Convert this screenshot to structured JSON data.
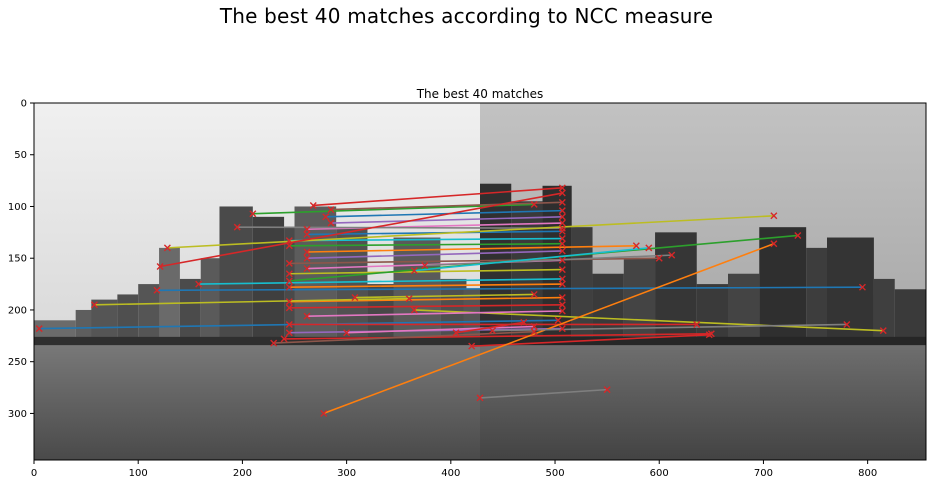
{
  "figure_title": "The best 40 matches according to NCC measure",
  "chart_data": {
    "type": "scatter",
    "title": "The best 40 matches",
    "xlabel": "",
    "ylabel": "",
    "xlim": [
      0,
      856
    ],
    "ylim": [
      345,
      0
    ],
    "xticks": [
      0,
      100,
      200,
      300,
      400,
      500,
      600,
      700,
      800
    ],
    "yticks": [
      0,
      50,
      100,
      150,
      200,
      250,
      300
    ],
    "grid": false,
    "background": "side-by-side grayscale photos of a harbor city skyline (left image width 428 px, right image offset at x=428)",
    "marker": "x",
    "marker_color": "#d62728",
    "matches": [
      {
        "x1": 268,
        "y1": 99,
        "x2": 507,
        "y2": 82,
        "color": "#d62728"
      },
      {
        "x1": 210,
        "y1": 107,
        "x2": 480,
        "y2": 98,
        "color": "#2ca02c"
      },
      {
        "x1": 285,
        "y1": 103,
        "x2": 507,
        "y2": 96,
        "color": "#8c564b"
      },
      {
        "x1": 280,
        "y1": 110,
        "x2": 507,
        "y2": 104,
        "color": "#1f77b4"
      },
      {
        "x1": 285,
        "y1": 116,
        "x2": 507,
        "y2": 110,
        "color": "#9467bd"
      },
      {
        "x1": 262,
        "y1": 122,
        "x2": 507,
        "y2": 116,
        "color": "#e377c2"
      },
      {
        "x1": 195,
        "y1": 120,
        "x2": 507,
        "y2": 121,
        "color": "#7f7f7f"
      },
      {
        "x1": 262,
        "y1": 127,
        "x2": 507,
        "y2": 124,
        "color": "#1f77b4"
      },
      {
        "x1": 245,
        "y1": 133,
        "x2": 507,
        "y2": 131,
        "color": "#17becf"
      },
      {
        "x1": 128,
        "y1": 140,
        "x2": 710,
        "y2": 109,
        "color": "#bcbd22"
      },
      {
        "x1": 245,
        "y1": 138,
        "x2": 507,
        "y2": 136,
        "color": "#2ca02c"
      },
      {
        "x1": 262,
        "y1": 144,
        "x2": 578,
        "y2": 138,
        "color": "#ff7f0e"
      },
      {
        "x1": 121,
        "y1": 158,
        "x2": 507,
        "y2": 87,
        "color": "#d62728"
      },
      {
        "x1": 262,
        "y1": 150,
        "x2": 507,
        "y2": 143,
        "color": "#9467bd"
      },
      {
        "x1": 245,
        "y1": 155,
        "x2": 600,
        "y2": 150,
        "color": "#8c564b"
      },
      {
        "x1": 262,
        "y1": 160,
        "x2": 507,
        "y2": 152,
        "color": "#e377c2"
      },
      {
        "x1": 375,
        "y1": 157,
        "x2": 612,
        "y2": 147,
        "color": "#7f7f7f"
      },
      {
        "x1": 245,
        "y1": 165,
        "x2": 507,
        "y2": 161,
        "color": "#bcbd22"
      },
      {
        "x1": 245,
        "y1": 172,
        "x2": 733,
        "y2": 128,
        "color": "#2ca02c"
      },
      {
        "x1": 158,
        "y1": 175,
        "x2": 507,
        "y2": 170,
        "color": "#17becf"
      },
      {
        "x1": 118,
        "y1": 181,
        "x2": 795,
        "y2": 178,
        "color": "#1f77b4"
      },
      {
        "x1": 245,
        "y1": 178,
        "x2": 507,
        "y2": 175,
        "color": "#ff7f0e"
      },
      {
        "x1": 308,
        "y1": 188,
        "x2": 480,
        "y2": 185,
        "color": "#bcbd22"
      },
      {
        "x1": 245,
        "y1": 192,
        "x2": 507,
        "y2": 188,
        "color": "#ff7f0e"
      },
      {
        "x1": 58,
        "y1": 195,
        "x2": 360,
        "y2": 189,
        "color": "#bcbd22"
      },
      {
        "x1": 245,
        "y1": 198,
        "x2": 507,
        "y2": 195,
        "color": "#d62728"
      },
      {
        "x1": 365,
        "y1": 200,
        "x2": 815,
        "y2": 220,
        "color": "#bcbd22"
      },
      {
        "x1": 262,
        "y1": 206,
        "x2": 507,
        "y2": 201,
        "color": "#e377c2"
      },
      {
        "x1": 5,
        "y1": 218,
        "x2": 503,
        "y2": 210,
        "color": "#1f77b4"
      },
      {
        "x1": 245,
        "y1": 214,
        "x2": 636,
        "y2": 214,
        "color": "#d62728"
      },
      {
        "x1": 245,
        "y1": 222,
        "x2": 507,
        "y2": 218,
        "color": "#9467bd"
      },
      {
        "x1": 240,
        "y1": 228,
        "x2": 650,
        "y2": 223,
        "color": "#d62728"
      },
      {
        "x1": 230,
        "y1": 232,
        "x2": 480,
        "y2": 221,
        "color": "#8c564b"
      },
      {
        "x1": 420,
        "y1": 235,
        "x2": 648,
        "y2": 224,
        "color": "#d62728"
      },
      {
        "x1": 278,
        "y1": 300,
        "x2": 710,
        "y2": 136,
        "color": "#ff7f0e"
      },
      {
        "x1": 440,
        "y1": 220,
        "x2": 780,
        "y2": 214,
        "color": "#7f7f7f"
      },
      {
        "x1": 428,
        "y1": 285,
        "x2": 550,
        "y2": 277,
        "color": "#7f7f7f"
      },
      {
        "x1": 300,
        "y1": 222,
        "x2": 480,
        "y2": 216,
        "color": "#e377c2"
      },
      {
        "x1": 365,
        "y1": 162,
        "x2": 590,
        "y2": 140,
        "color": "#17becf"
      },
      {
        "x1": 405,
        "y1": 222,
        "x2": 470,
        "y2": 212,
        "color": "#d62728"
      }
    ]
  }
}
